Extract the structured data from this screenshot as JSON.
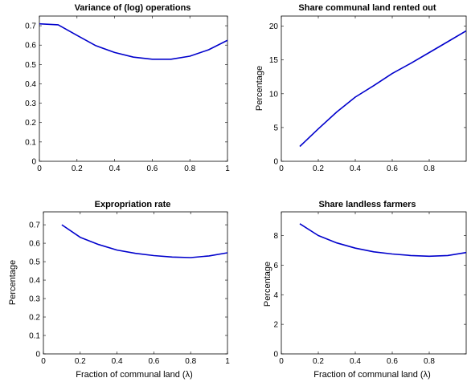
{
  "chart_data": [
    {
      "type": "line",
      "title": "Variance of (log) operations",
      "xlabel": "",
      "ylabel": "",
      "xlim": [
        0,
        1
      ],
      "ylim": [
        0,
        0.75
      ],
      "xticks": [
        "0",
        "0.2",
        "0.4",
        "0.6",
        "0.8",
        "1"
      ],
      "yticks": [
        "0",
        "0.1",
        "0.2",
        "0.3",
        "0.4",
        "0.5",
        "0.6",
        "0.7"
      ],
      "grid": false,
      "color": "#0000cc",
      "series": [
        {
          "x": [
            0,
            0.1,
            0.2,
            0.3,
            0.4,
            0.5,
            0.6,
            0.7,
            0.8,
            0.9,
            1.0
          ],
          "values": [
            0.71,
            0.705,
            0.65,
            0.597,
            0.562,
            0.538,
            0.527,
            0.527,
            0.543,
            0.576,
            0.625
          ]
        }
      ]
    },
    {
      "type": "line",
      "title": "Share communal land rented out",
      "xlabel": "",
      "ylabel": "Percentage",
      "xlim": [
        0,
        1
      ],
      "ylim": [
        0,
        21.5
      ],
      "xticks": [
        "0",
        "0.2",
        "0.4",
        "0.6",
        "0.8"
      ],
      "yticks": [
        "0",
        "5",
        "10",
        "15",
        "20"
      ],
      "grid": false,
      "color": "#0000cc",
      "series": [
        {
          "x": [
            0.1,
            0.2,
            0.3,
            0.4,
            0.5,
            0.6,
            0.7,
            0.8,
            0.9,
            1.0
          ],
          "values": [
            2.2,
            4.8,
            7.3,
            9.5,
            11.2,
            13.0,
            14.5,
            16.1,
            17.7,
            19.3
          ]
        }
      ]
    },
    {
      "type": "line",
      "title": "Expropriation rate",
      "xlabel": "Fraction of communal land (λ)",
      "ylabel": "Percentage",
      "xlim": [
        0,
        1
      ],
      "ylim": [
        0,
        0.77
      ],
      "xticks": [
        "0",
        "0.2",
        "0.4",
        "0.6",
        "0.8",
        "1"
      ],
      "yticks": [
        "0",
        "0.1",
        "0.2",
        "0.3",
        "0.4",
        "0.5",
        "0.6",
        "0.7"
      ],
      "grid": false,
      "color": "#0000cc",
      "series": [
        {
          "x": [
            0.1,
            0.2,
            0.3,
            0.4,
            0.5,
            0.6,
            0.7,
            0.8,
            0.9,
            1.0
          ],
          "values": [
            0.7,
            0.632,
            0.593,
            0.563,
            0.545,
            0.533,
            0.525,
            0.522,
            0.531,
            0.548
          ]
        }
      ]
    },
    {
      "type": "line",
      "title": "Share landless farmers",
      "xlabel": "Fraction of communal land (λ)",
      "ylabel": "Percentage",
      "xlim": [
        0,
        1
      ],
      "ylim": [
        0,
        9.6
      ],
      "xticks": [
        "0",
        "0.2",
        "0.4",
        "0.6",
        "0.8"
      ],
      "yticks": [
        "0",
        "2",
        "4",
        "6",
        "8"
      ],
      "grid": false,
      "color": "#0000cc",
      "series": [
        {
          "x": [
            0.1,
            0.2,
            0.3,
            0.4,
            0.5,
            0.6,
            0.7,
            0.8,
            0.9,
            1.0
          ],
          "values": [
            8.8,
            8.0,
            7.5,
            7.15,
            6.9,
            6.75,
            6.65,
            6.6,
            6.65,
            6.85
          ]
        }
      ]
    }
  ]
}
